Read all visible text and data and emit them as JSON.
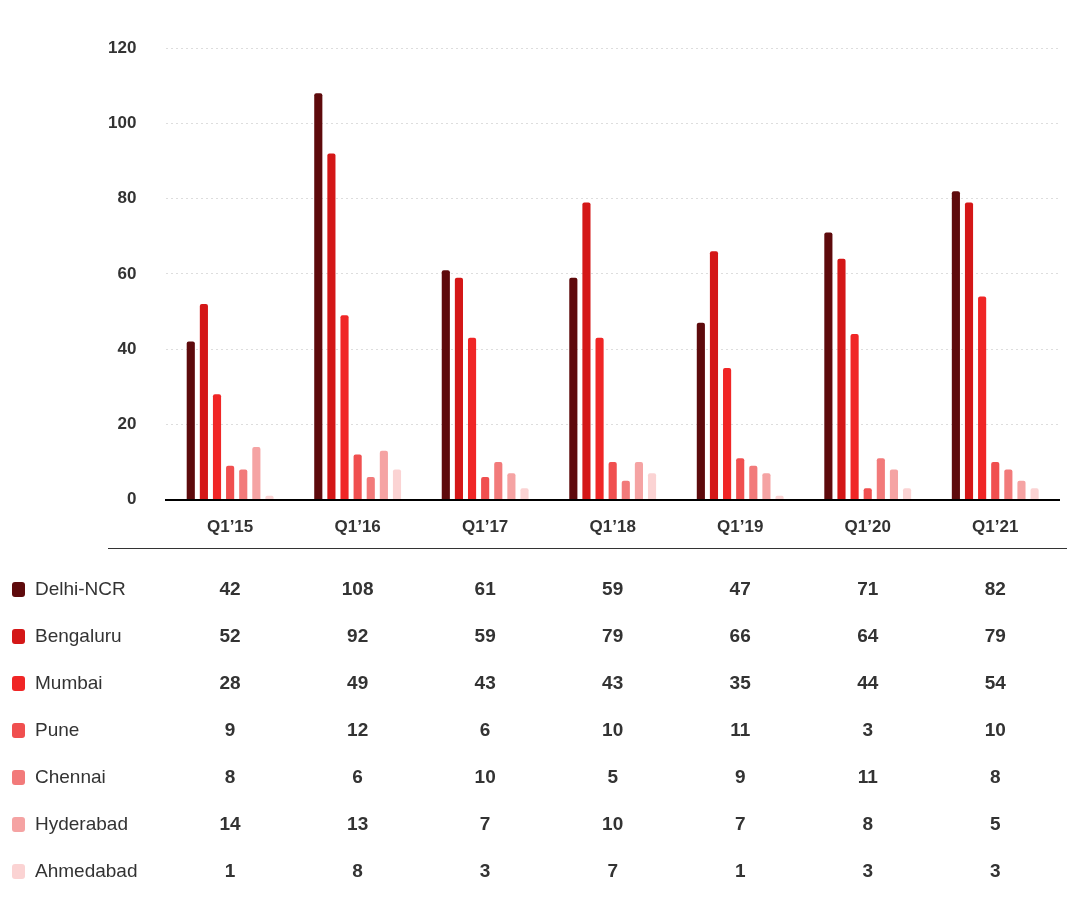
{
  "chart_data": {
    "type": "bar",
    "categories": [
      "Q1’15",
      "Q1’16",
      "Q1’17",
      "Q1’18",
      "Q1’19",
      "Q1’20",
      "Q1’21"
    ],
    "series": [
      {
        "name": "Delhi-NCR",
        "color": "#5e0a0c",
        "values": [
          42,
          108,
          61,
          59,
          47,
          71,
          82
        ]
      },
      {
        "name": "Bengaluru",
        "color": "#d41717",
        "values": [
          52,
          92,
          59,
          79,
          66,
          64,
          79
        ]
      },
      {
        "name": "Mumbai",
        "color": "#f02626",
        "values": [
          28,
          49,
          43,
          43,
          35,
          44,
          54
        ]
      },
      {
        "name": "Pune",
        "color": "#f04f4f",
        "values": [
          9,
          12,
          6,
          10,
          11,
          3,
          10
        ]
      },
      {
        "name": "Chennai",
        "color": "#f27a7a",
        "values": [
          8,
          6,
          10,
          5,
          9,
          11,
          8
        ]
      },
      {
        "name": "Hyderabad",
        "color": "#f5a3a3",
        "values": [
          14,
          13,
          7,
          10,
          7,
          8,
          5
        ]
      },
      {
        "name": "Ahmedabad",
        "color": "#fbd3d3",
        "values": [
          1,
          8,
          3,
          7,
          1,
          3,
          3
        ]
      }
    ],
    "ylim": [
      0,
      120
    ],
    "yticks": [
      0,
      20,
      40,
      60,
      80,
      100,
      120
    ],
    "grid": "y",
    "legend": "bottom",
    "data_labels": true
  }
}
